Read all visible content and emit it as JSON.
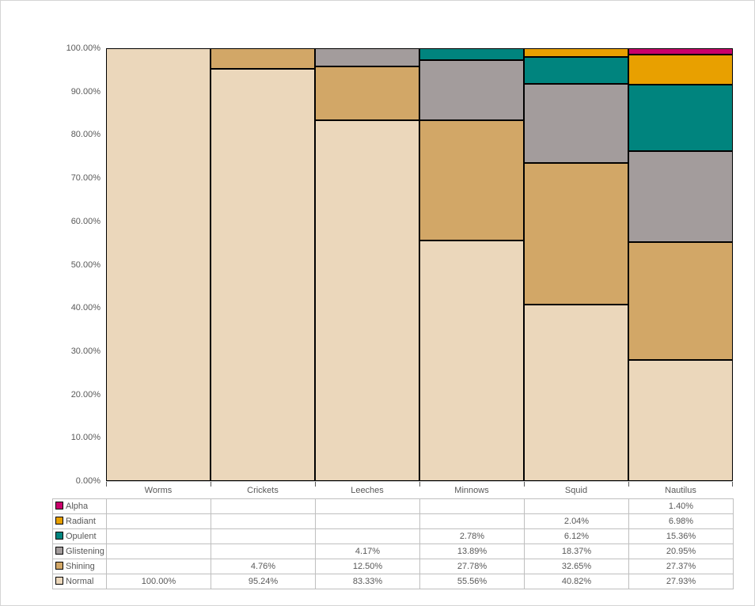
{
  "chart_data": {
    "type": "bar",
    "subtype": "100%-stacked-column-mosaic",
    "title": "",
    "xlabel": "",
    "ylabel": "",
    "ylim": [
      0,
      100
    ],
    "grid": false,
    "gap_width_pct": 0,
    "segment_border_color": "#000000",
    "categories": [
      "Worms",
      "Crickets",
      "Leeches",
      "Minnows",
      "Squid",
      "Nautilus"
    ],
    "series": [
      {
        "name": "Normal",
        "color": "#ebd7bb",
        "values": [
          100.0,
          95.24,
          83.33,
          55.56,
          40.82,
          27.93
        ]
      },
      {
        "name": "Shining",
        "color": "#d2a767",
        "values": [
          null,
          4.76,
          12.5,
          27.78,
          32.65,
          27.37
        ]
      },
      {
        "name": "Glistening",
        "color": "#a39c9c",
        "values": [
          null,
          null,
          4.17,
          13.89,
          18.37,
          20.95
        ]
      },
      {
        "name": "Opulent",
        "color": "#00847e",
        "values": [
          null,
          null,
          null,
          2.78,
          6.12,
          15.36
        ]
      },
      {
        "name": "Radiant",
        "color": "#e8a000",
        "values": [
          null,
          null,
          null,
          null,
          2.04,
          6.98
        ]
      },
      {
        "name": "Alpha",
        "color": "#c9006b",
        "values": [
          null,
          null,
          null,
          null,
          null,
          1.4
        ]
      }
    ],
    "y_ticks": [
      "100.00%",
      "90.00%",
      "80.00%",
      "70.00%",
      "60.00%",
      "50.00%",
      "40.00%",
      "30.00%",
      "20.00%",
      "10.00%",
      "0.00%"
    ],
    "legend_position": "data-table-left"
  },
  "data_table": {
    "rows": [
      {
        "label": "Alpha",
        "color": "#c9006b",
        "cells": [
          "",
          "",
          "",
          "",
          "",
          "1.40%"
        ]
      },
      {
        "label": "Radiant",
        "color": "#e8a000",
        "cells": [
          "",
          "",
          "",
          "",
          "2.04%",
          "6.98%"
        ]
      },
      {
        "label": "Opulent",
        "color": "#00847e",
        "cells": [
          "",
          "",
          "",
          "2.78%",
          "6.12%",
          "15.36%"
        ]
      },
      {
        "label": "Glistening",
        "color": "#a39c9c",
        "cells": [
          "",
          "",
          "4.17%",
          "13.89%",
          "18.37%",
          "20.95%"
        ]
      },
      {
        "label": "Shining",
        "color": "#d2a767",
        "cells": [
          "",
          "4.76%",
          "12.50%",
          "27.78%",
          "32.65%",
          "27.37%"
        ]
      },
      {
        "label": "Normal",
        "color": "#ebd7bb",
        "cells": [
          "100.00%",
          "95.24%",
          "83.33%",
          "55.56%",
          "40.82%",
          "27.93%"
        ]
      }
    ]
  },
  "colors": {
    "axis_text": "#595959",
    "table_border": "#bfbfbf",
    "axis_line": "#bfbfbf",
    "frame_border": "#d4d4d4"
  }
}
